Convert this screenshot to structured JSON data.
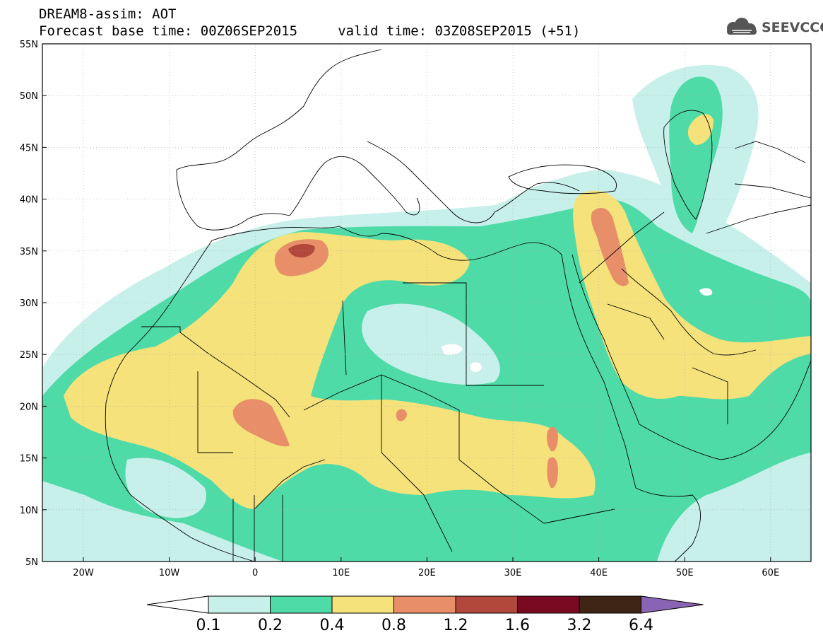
{
  "header": {
    "line1": "DREAM8-assim: AOT",
    "line2": "Forecast base time: 00Z06SEP2015     valid time: 03Z08SEP2015 (+51)"
  },
  "logo": {
    "text": "SEEVCCC",
    "icon": "cloud-icon"
  },
  "map": {
    "lat_labels": [
      "55N",
      "50N",
      "45N",
      "40N",
      "35N",
      "30N",
      "25N",
      "20N",
      "15N",
      "10N",
      "5N"
    ],
    "lon_labels": [
      "20W",
      "10W",
      "0",
      "10E",
      "20E",
      "30E",
      "40E",
      "50E",
      "60E"
    ]
  },
  "colorbar": {
    "labels": [
      "0.1",
      "0.2",
      "0.4",
      "0.8",
      "1.2",
      "1.6",
      "3.2",
      "6.4"
    ],
    "colors": [
      "#c7f0ea",
      "#4fdba8",
      "#f5e27a",
      "#e88f6a",
      "#b2473b",
      "#7a0a22",
      "#3e2415",
      "#8a64b4"
    ]
  }
}
